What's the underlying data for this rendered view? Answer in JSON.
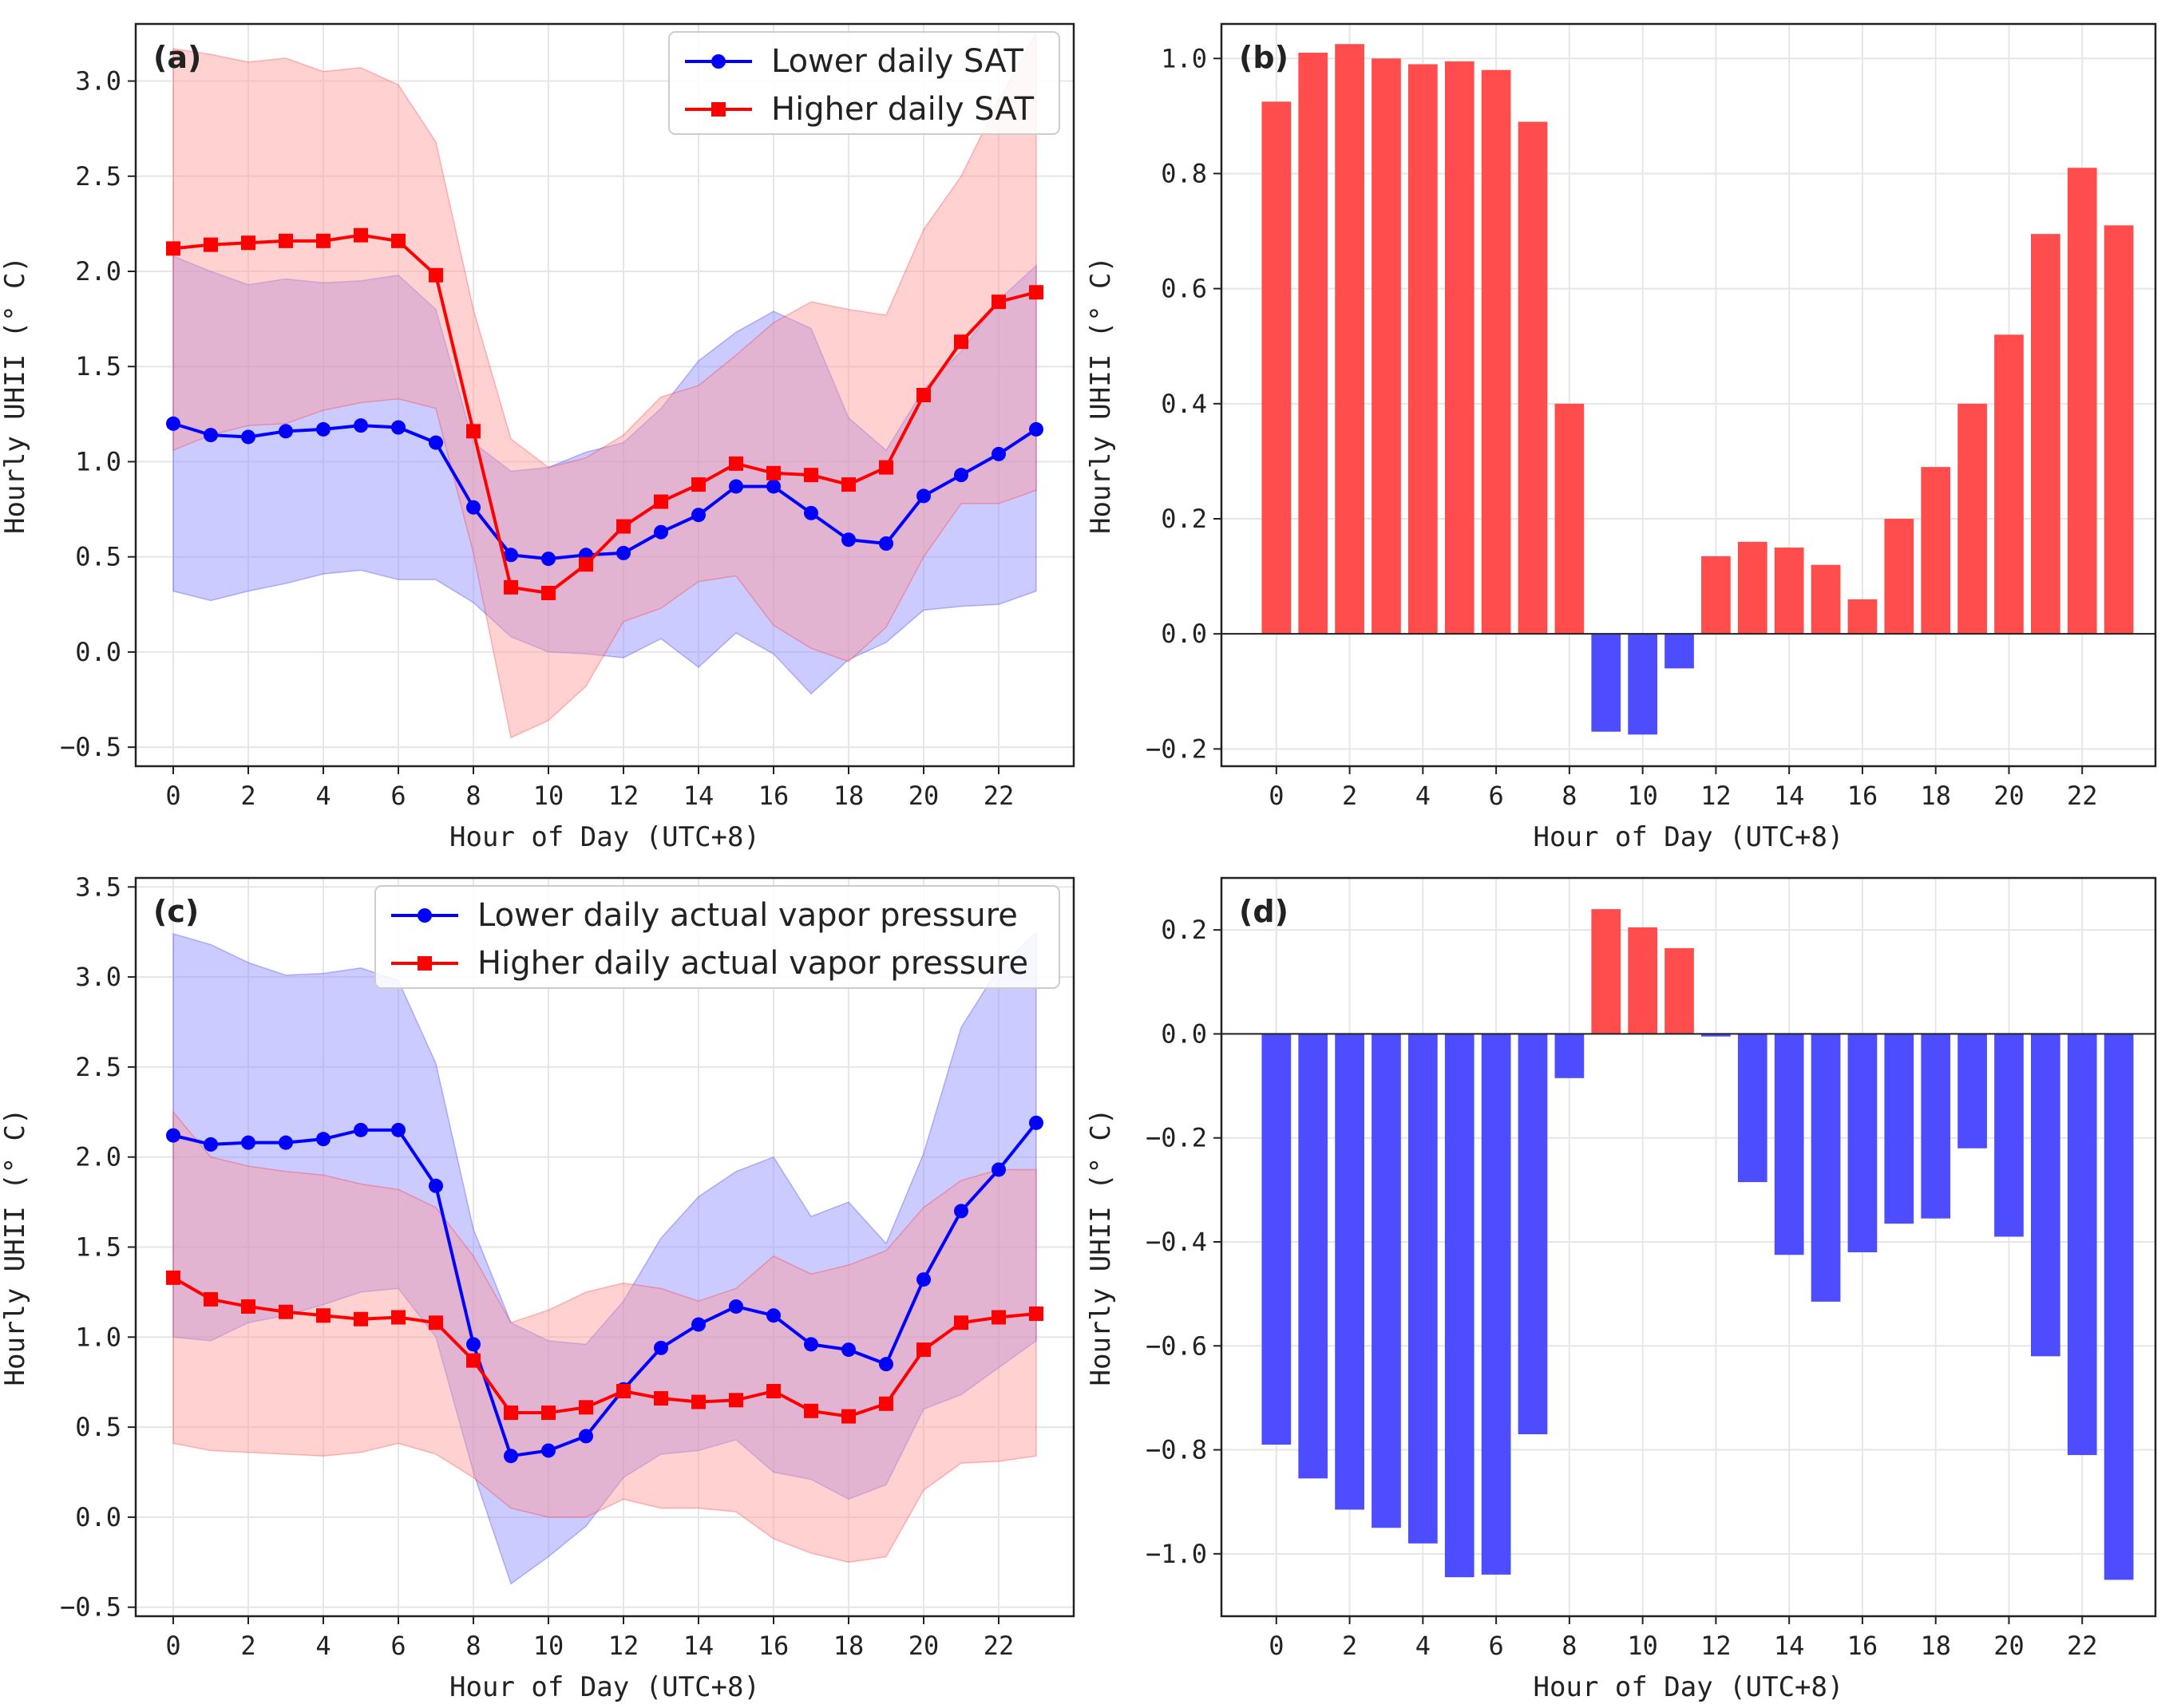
{
  "figure": {
    "colors": {
      "lower": "#0000ff",
      "higher": "#ff0000",
      "bar_pos": "#ff4d4d",
      "bar_neg": "#4d4dff",
      "band_lower": "#8c8cff",
      "band_higher": "#ff9999"
    }
  },
  "chart_data": [
    {
      "type": "line",
      "panel_label": "(a)",
      "xlabel": "Hour of Day (UTC+8)",
      "ylabel": "Hourly UHII (° C)",
      "xlim": [
        -1,
        24
      ],
      "ylim": [
        -0.6,
        3.3
      ],
      "xticks": [
        0,
        2,
        4,
        6,
        8,
        10,
        12,
        14,
        16,
        18,
        20,
        22
      ],
      "yticks": [
        -0.5,
        0.0,
        0.5,
        1.0,
        1.5,
        2.0,
        2.5,
        3.0
      ],
      "ytick_labels": [
        "−0.5",
        "0.0",
        "0.5",
        "1.0",
        "1.5",
        "2.0",
        "2.5",
        "3.0"
      ],
      "legend": [
        "Lower daily SAT",
        "Higher daily SAT"
      ],
      "x": [
        0,
        1,
        2,
        3,
        4,
        5,
        6,
        7,
        8,
        9,
        10,
        11,
        12,
        13,
        14,
        15,
        16,
        17,
        18,
        19,
        20,
        21,
        22,
        23
      ],
      "series": [
        {
          "name": "Lower daily SAT",
          "color": "#0000ff",
          "marker": "circle",
          "values": [
            1.2,
            1.14,
            1.13,
            1.16,
            1.17,
            1.19,
            1.18,
            1.1,
            0.76,
            0.51,
            0.49,
            0.51,
            0.52,
            0.63,
            0.72,
            0.87,
            0.87,
            0.73,
            0.59,
            0.57,
            0.82,
            0.93,
            1.04,
            1.17
          ],
          "band_upper": [
            2.08,
            2.0,
            1.93,
            1.96,
            1.94,
            1.95,
            1.98,
            1.8,
            1.1,
            0.95,
            0.97,
            1.05,
            1.1,
            1.28,
            1.53,
            1.68,
            1.79,
            1.7,
            1.23,
            1.06,
            1.38,
            1.58,
            1.85,
            2.03
          ],
          "band_lower": [
            0.32,
            0.27,
            0.32,
            0.36,
            0.41,
            0.43,
            0.38,
            0.38,
            0.26,
            0.08,
            0.0,
            -0.01,
            -0.03,
            0.07,
            -0.08,
            0.1,
            -0.01,
            -0.22,
            -0.04,
            0.05,
            0.22,
            0.24,
            0.25,
            0.32
          ]
        },
        {
          "name": "Higher daily SAT",
          "color": "#ff0000",
          "marker": "square",
          "values": [
            2.12,
            2.14,
            2.15,
            2.16,
            2.16,
            2.19,
            2.16,
            1.98,
            1.16,
            0.34,
            0.31,
            0.46,
            0.66,
            0.79,
            0.88,
            0.99,
            0.94,
            0.93,
            0.88,
            0.97,
            1.35,
            1.63,
            1.84,
            1.89
          ],
          "band_upper": [
            3.17,
            3.14,
            3.1,
            3.12,
            3.05,
            3.07,
            2.98,
            2.68,
            1.8,
            1.12,
            0.97,
            1.02,
            1.14,
            1.34,
            1.4,
            1.56,
            1.73,
            1.84,
            1.8,
            1.77,
            2.22,
            2.5,
            2.9,
            3.25
          ],
          "band_lower": [
            1.06,
            1.14,
            1.19,
            1.2,
            1.27,
            1.31,
            1.33,
            1.28,
            0.52,
            -0.45,
            -0.36,
            -0.18,
            0.16,
            0.23,
            0.37,
            0.4,
            0.14,
            0.02,
            -0.05,
            0.13,
            0.5,
            0.78,
            0.78,
            0.85
          ]
        }
      ]
    },
    {
      "type": "bar",
      "panel_label": "(b)",
      "xlabel": "Hour of Day (UTC+8)",
      "ylabel": "Hourly UHII (° C)",
      "xlim": [
        -1.5,
        24
      ],
      "ylim": [
        -0.23,
        1.06
      ],
      "xticks": [
        0,
        2,
        4,
        6,
        8,
        10,
        12,
        14,
        16,
        18,
        20,
        22
      ],
      "yticks": [
        -0.2,
        0.0,
        0.2,
        0.4,
        0.6,
        0.8,
        1.0
      ],
      "ytick_labels": [
        "−0.2",
        "0.0",
        "0.2",
        "0.4",
        "0.6",
        "0.8",
        "1.0"
      ],
      "x": [
        0,
        1,
        2,
        3,
        4,
        5,
        6,
        7,
        8,
        9,
        10,
        11,
        12,
        13,
        14,
        15,
        16,
        17,
        18,
        19,
        20,
        21,
        22,
        23
      ],
      "values": [
        0.925,
        1.01,
        1.025,
        1.0,
        0.99,
        0.995,
        0.98,
        0.89,
        0.4,
        -0.17,
        -0.175,
        -0.06,
        0.135,
        0.16,
        0.15,
        0.12,
        0.06,
        0.2,
        0.29,
        0.4,
        0.52,
        0.695,
        0.81,
        0.71
      ]
    },
    {
      "type": "line",
      "panel_label": "(c)",
      "xlabel": "Hour of Day (UTC+8)",
      "ylabel": "Hourly UHII (° C)",
      "xlim": [
        -1,
        24
      ],
      "ylim": [
        -0.55,
        3.55
      ],
      "xticks": [
        0,
        2,
        4,
        6,
        8,
        10,
        12,
        14,
        16,
        18,
        20,
        22
      ],
      "yticks": [
        -0.5,
        0.0,
        0.5,
        1.0,
        1.5,
        2.0,
        2.5,
        3.0,
        3.5
      ],
      "ytick_labels": [
        "−0.5",
        "0.0",
        "0.5",
        "1.0",
        "1.5",
        "2.0",
        "2.5",
        "3.0",
        "3.5"
      ],
      "legend": [
        "Lower daily actual vapor pressure",
        "Higher daily actual vapor pressure"
      ],
      "x": [
        0,
        1,
        2,
        3,
        4,
        5,
        6,
        7,
        8,
        9,
        10,
        11,
        12,
        13,
        14,
        15,
        16,
        17,
        18,
        19,
        20,
        21,
        22,
        23
      ],
      "series": [
        {
          "name": "Lower daily actual vapor pressure",
          "color": "#0000ff",
          "marker": "circle",
          "values": [
            2.12,
            2.07,
            2.08,
            2.08,
            2.1,
            2.15,
            2.15,
            1.84,
            0.96,
            0.34,
            0.37,
            0.45,
            0.71,
            0.94,
            1.07,
            1.17,
            1.12,
            0.96,
            0.93,
            0.85,
            1.32,
            1.7,
            1.93,
            2.19
          ],
          "band_upper": [
            3.24,
            3.18,
            3.08,
            3.01,
            3.02,
            3.05,
            2.98,
            2.52,
            1.6,
            1.08,
            0.98,
            0.96,
            1.2,
            1.55,
            1.78,
            1.92,
            2.0,
            1.67,
            1.75,
            1.52,
            2.02,
            2.72,
            3.05,
            3.25
          ],
          "band_lower": [
            1.0,
            0.98,
            1.08,
            1.12,
            1.18,
            1.25,
            1.27,
            1.0,
            0.25,
            -0.37,
            -0.22,
            -0.05,
            0.22,
            0.35,
            0.37,
            0.43,
            0.25,
            0.21,
            0.1,
            0.18,
            0.6,
            0.68,
            0.83,
            0.98
          ]
        },
        {
          "name": "Higher daily actual vapor pressure",
          "color": "#ff0000",
          "marker": "square",
          "values": [
            1.33,
            1.21,
            1.17,
            1.14,
            1.12,
            1.1,
            1.11,
            1.08,
            0.87,
            0.58,
            0.58,
            0.61,
            0.7,
            0.66,
            0.64,
            0.65,
            0.7,
            0.59,
            0.56,
            0.63,
            0.93,
            1.08,
            1.11,
            1.13
          ],
          "band_upper": [
            2.25,
            2.0,
            1.95,
            1.92,
            1.9,
            1.85,
            1.82,
            1.72,
            1.45,
            1.08,
            1.15,
            1.25,
            1.3,
            1.27,
            1.2,
            1.27,
            1.45,
            1.35,
            1.4,
            1.48,
            1.72,
            1.87,
            1.93,
            1.93
          ],
          "band_lower": [
            0.41,
            0.37,
            0.36,
            0.35,
            0.34,
            0.36,
            0.41,
            0.35,
            0.22,
            0.05,
            0.0,
            0.0,
            0.1,
            0.05,
            0.05,
            0.03,
            -0.12,
            -0.2,
            -0.25,
            -0.22,
            0.15,
            0.3,
            0.31,
            0.34
          ]
        }
      ]
    },
    {
      "type": "bar",
      "panel_label": "(d)",
      "xlabel": "Hour of Day (UTC+8)",
      "ylabel": "Hourly UHII (° C)",
      "xlim": [
        -1.5,
        24
      ],
      "ylim": [
        -1.12,
        0.3
      ],
      "xticks": [
        0,
        2,
        4,
        6,
        8,
        10,
        12,
        14,
        16,
        18,
        20,
        22
      ],
      "yticks": [
        -1.0,
        -0.8,
        -0.6,
        -0.4,
        -0.2,
        0.0,
        0.2
      ],
      "ytick_labels": [
        "−1.0",
        "−0.8",
        "−0.6",
        "−0.4",
        "−0.2",
        "0.0",
        "0.2"
      ],
      "x": [
        0,
        1,
        2,
        3,
        4,
        5,
        6,
        7,
        8,
        9,
        10,
        11,
        12,
        13,
        14,
        15,
        16,
        17,
        18,
        19,
        20,
        21,
        22,
        23
      ],
      "values": [
        -0.79,
        -0.855,
        -0.915,
        -0.95,
        -0.98,
        -1.045,
        -1.04,
        -0.77,
        -0.085,
        0.24,
        0.205,
        0.165,
        -0.005,
        -0.285,
        -0.425,
        -0.515,
        -0.42,
        -0.365,
        -0.355,
        -0.22,
        -0.39,
        -0.62,
        -0.81,
        -1.05
      ]
    }
  ]
}
